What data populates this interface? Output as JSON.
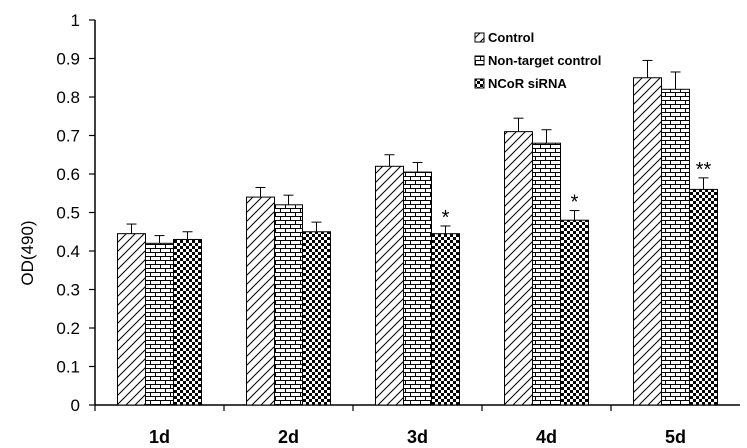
{
  "chart_data": {
    "type": "bar",
    "ylabel": "OD(490)",
    "xlabel": "",
    "ylim": [
      0,
      1
    ],
    "yticks": [
      0,
      0.1,
      0.2,
      0.3,
      0.4,
      0.5,
      0.6,
      0.7,
      0.8,
      0.9,
      1
    ],
    "ytick_labels": [
      "0",
      "0.1",
      "0.2",
      "0.3",
      "0.4",
      "0.5",
      "0.6",
      "0.7",
      "0.8",
      "0.9",
      "1"
    ],
    "categories": [
      "1d",
      "2d",
      "3d",
      "4d",
      "5d"
    ],
    "series": [
      {
        "name": "Control",
        "pattern": "diagonal-hatch",
        "values": [
          0.445,
          0.54,
          0.62,
          0.71,
          0.85
        ],
        "errors": [
          0.025,
          0.025,
          0.03,
          0.035,
          0.045
        ]
      },
      {
        "name": "Non-target control",
        "pattern": "brick",
        "values": [
          0.42,
          0.52,
          0.605,
          0.68,
          0.82
        ],
        "errors": [
          0.02,
          0.025,
          0.025,
          0.035,
          0.045
        ]
      },
      {
        "name": "NCoR siRNA",
        "pattern": "checkerboard",
        "values": [
          0.43,
          0.45,
          0.445,
          0.48,
          0.56
        ],
        "errors": [
          0.02,
          0.025,
          0.02,
          0.025,
          0.03
        ]
      }
    ],
    "annotations": [
      {
        "category": "3d",
        "series": "NCoR siRNA",
        "text": "*"
      },
      {
        "category": "4d",
        "series": "NCoR siRNA",
        "text": "*"
      },
      {
        "category": "5d",
        "series": "NCoR siRNA",
        "text": "**"
      }
    ],
    "grid": false,
    "legend_position": "top-right"
  }
}
